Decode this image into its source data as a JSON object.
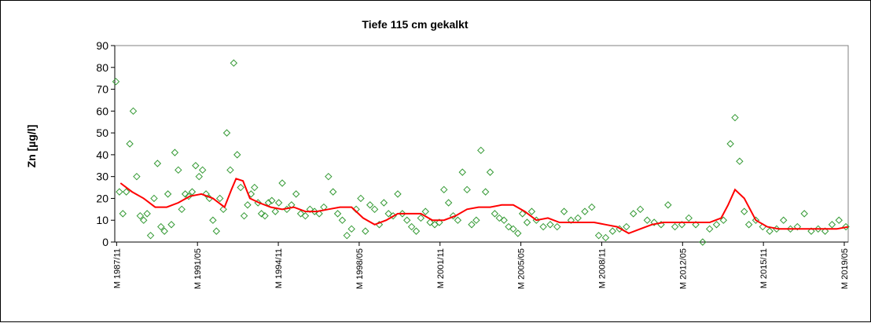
{
  "chart_data": {
    "type": "scatter",
    "title": "Tiefe 115 cm   gekalkt",
    "xlabel": "",
    "ylabel": "Zn [µg/l]",
    "ylim": [
      0,
      90
    ],
    "yticks": [
      0,
      10,
      20,
      30,
      40,
      50,
      60,
      70,
      80,
      90
    ],
    "xlim": [
      1987.75,
      2019.5
    ],
    "xticks": [
      {
        "label": "M 1987/11",
        "value": 1987.83
      },
      {
        "label": "M 1991/05",
        "value": 1991.33
      },
      {
        "label": "M 1994/11",
        "value": 1994.83
      },
      {
        "label": "M 1998/05",
        "value": 1998.33
      },
      {
        "label": "M 2001/11",
        "value": 2001.83
      },
      {
        "label": "M 2005/05",
        "value": 2005.33
      },
      {
        "label": "M 2008/11",
        "value": 2008.83
      },
      {
        "label": "M 2012/05",
        "value": 2012.33
      },
      {
        "label": "M 2015/11",
        "value": 2015.83
      },
      {
        "label": "M 2019/05",
        "value": 2019.33
      }
    ],
    "grid": "horizontal",
    "colors": {
      "points": "#339933",
      "trend": "#ff0000",
      "grid": "#000000"
    },
    "series": [
      {
        "marker": "diamond",
        "x": [
          1987.8,
          1987.95,
          1988.1,
          1988.25,
          1988.4,
          1988.55,
          1988.7,
          1988.85,
          1989.0,
          1989.15,
          1989.3,
          1989.45,
          1989.6,
          1989.75,
          1989.9,
          1990.05,
          1990.2,
          1990.35,
          1990.5,
          1990.65,
          1990.8,
          1990.95,
          1991.1,
          1991.25,
          1991.4,
          1991.55,
          1991.7,
          1991.85,
          1992.0,
          1992.15,
          1992.3,
          1992.45,
          1992.6,
          1992.75,
          1992.9,
          1993.05,
          1993.2,
          1993.35,
          1993.5,
          1993.65,
          1993.8,
          1993.95,
          1994.1,
          1994.25,
          1994.4,
          1994.55,
          1994.7,
          1994.85,
          1995.0,
          1995.2,
          1995.4,
          1995.6,
          1995.8,
          1996.0,
          1996.2,
          1996.4,
          1996.6,
          1996.8,
          1997.0,
          1997.2,
          1997.4,
          1997.6,
          1997.8,
          1998.0,
          1998.2,
          1998.4,
          1998.6,
          1998.8,
          1999.0,
          1999.2,
          1999.4,
          1999.6,
          1999.8,
          2000.0,
          2000.2,
          2000.4,
          2000.6,
          2000.8,
          2001.0,
          2001.2,
          2001.4,
          2001.6,
          2001.8,
          2002.0,
          2002.2,
          2002.4,
          2002.6,
          2002.8,
          2003.0,
          2003.2,
          2003.4,
          2003.6,
          2003.8,
          2004.0,
          2004.2,
          2004.4,
          2004.6,
          2004.8,
          2005.0,
          2005.2,
          2005.4,
          2005.6,
          2005.8,
          2006.0,
          2006.3,
          2006.6,
          2006.9,
          2007.2,
          2007.5,
          2007.8,
          2008.1,
          2008.4,
          2008.7,
          2009.0,
          2009.3,
          2009.6,
          2009.9,
          2010.2,
          2010.5,
          2010.8,
          2011.1,
          2011.4,
          2011.7,
          2012.0,
          2012.3,
          2012.6,
          2012.9,
          2013.2,
          2013.5,
          2013.8,
          2014.1,
          2014.4,
          2014.6,
          2014.8,
          2015.0,
          2015.2,
          2015.5,
          2015.8,
          2016.1,
          2016.4,
          2016.7,
          2017.0,
          2017.3,
          2017.6,
          2017.9,
          2018.2,
          2018.5,
          2018.8,
          2019.1,
          2019.4
        ],
        "y": [
          73.5,
          23,
          13,
          23,
          45,
          60,
          30,
          12,
          10,
          13,
          3,
          20,
          36,
          7,
          5,
          22,
          8,
          41,
          33,
          15,
          22,
          21,
          23,
          35,
          30,
          33,
          22,
          20,
          10,
          5,
          20,
          15,
          50,
          33,
          82,
          40,
          25,
          12,
          17,
          22,
          25,
          18,
          13,
          12,
          18,
          19,
          14,
          18,
          27,
          15,
          17,
          22,
          13,
          12,
          15,
          14,
          13,
          16,
          30,
          23,
          13,
          10,
          3,
          6,
          15,
          20,
          5,
          17,
          15,
          8,
          18,
          13,
          12,
          22,
          13,
          10,
          7,
          5,
          11,
          14,
          9,
          8,
          9,
          24,
          18,
          12,
          10,
          32,
          24,
          8,
          10,
          42,
          23,
          32,
          13,
          11,
          10,
          7,
          6,
          4,
          13,
          9,
          14,
          10,
          7,
          8,
          7,
          14,
          10,
          11,
          14,
          16,
          3,
          2,
          5,
          6,
          7,
          13,
          15,
          10,
          9,
          8,
          17,
          7,
          8,
          11,
          8,
          0,
          6,
          8,
          10,
          45,
          57,
          37,
          14,
          8,
          10,
          7,
          5,
          6,
          10,
          6,
          7,
          13,
          5,
          6,
          5,
          8,
          10,
          7
        ]
      },
      {
        "marker": "line",
        "x": [
          1988.0,
          1988.5,
          1989.0,
          1989.5,
          1990.0,
          1990.5,
          1991.0,
          1991.5,
          1992.0,
          1992.5,
          1992.8,
          1993.0,
          1993.3,
          1993.6,
          1994.0,
          1994.5,
          1995.0,
          1995.5,
          1996.0,
          1996.5,
          1997.0,
          1997.5,
          1998.0,
          1998.5,
          1999.0,
          1999.5,
          2000.0,
          2000.5,
          2001.0,
          2001.5,
          2002.0,
          2002.5,
          2003.0,
          2003.5,
          2004.0,
          2004.5,
          2005.0,
          2005.5,
          2006.0,
          2006.5,
          2007.0,
          2007.5,
          2008.0,
          2008.5,
          2009.0,
          2009.5,
          2010.0,
          2010.5,
          2011.0,
          2011.5,
          2012.0,
          2012.5,
          2013.0,
          2013.5,
          2014.0,
          2014.3,
          2014.6,
          2015.0,
          2015.5,
          2016.0,
          2016.5,
          2017.0,
          2017.5,
          2018.0,
          2018.5,
          2019.0,
          2019.5
        ],
        "y": [
          27,
          23,
          20,
          16,
          16,
          18,
          21,
          22,
          20,
          16,
          24,
          29,
          28,
          20,
          18,
          16,
          15,
          16,
          14,
          14,
          15,
          16,
          16,
          11,
          8,
          10,
          13,
          13,
          13,
          10,
          10,
          12,
          15,
          16,
          16,
          17,
          17,
          14,
          10,
          11,
          9,
          9,
          9,
          9,
          8,
          7,
          4,
          6,
          8,
          9,
          9,
          9,
          9,
          9,
          11,
          17,
          24,
          20,
          10,
          7,
          6,
          6,
          6,
          6,
          6,
          6,
          7
        ]
      }
    ]
  }
}
